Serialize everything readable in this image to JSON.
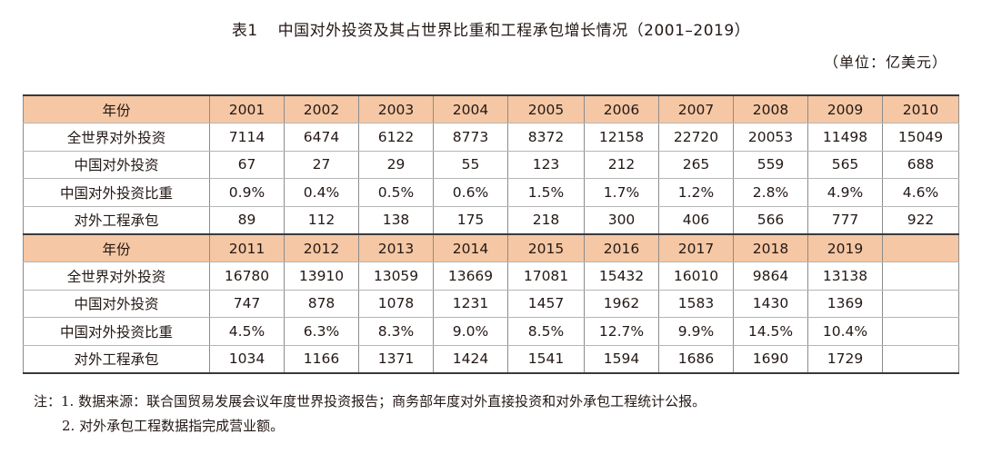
{
  "title": {
    "label": "表1",
    "text": "中国对外投资及其占世界比重和工程承包增长情况（2001–2019）"
  },
  "unit": "（单位：亿美元）",
  "table": {
    "blocks": [
      {
        "header_label": "年份",
        "years": [
          "2001",
          "2002",
          "2003",
          "2004",
          "2005",
          "2006",
          "2007",
          "2008",
          "2009",
          "2010"
        ],
        "rows": [
          {
            "label": "全世界对外投资",
            "values": [
              "7114",
              "6474",
              "6122",
              "8773",
              "8372",
              "12158",
              "22720",
              "20053",
              "11498",
              "15049"
            ]
          },
          {
            "label": "中国对外投资",
            "values": [
              "67",
              "27",
              "29",
              "55",
              "123",
              "212",
              "265",
              "559",
              "565",
              "688"
            ]
          },
          {
            "label": "中国对外投资比重",
            "values": [
              "0.9%",
              "0.4%",
              "0.5%",
              "0.6%",
              "1.5%",
              "1.7%",
              "1.2%",
              "2.8%",
              "4.9%",
              "4.6%"
            ]
          },
          {
            "label": "对外工程承包",
            "values": [
              "89",
              "112",
              "138",
              "175",
              "218",
              "300",
              "406",
              "566",
              "777",
              "922"
            ]
          }
        ]
      },
      {
        "header_label": "年份",
        "years": [
          "2011",
          "2012",
          "2013",
          "2014",
          "2015",
          "2016",
          "2017",
          "2018",
          "2019",
          ""
        ],
        "rows": [
          {
            "label": "全世界对外投资",
            "values": [
              "16780",
              "13910",
              "13059",
              "13669",
              "17081",
              "15432",
              "16010",
              "9864",
              "13138",
              ""
            ]
          },
          {
            "label": "中国对外投资",
            "values": [
              "747",
              "878",
              "1078",
              "1231",
              "1457",
              "1962",
              "1583",
              "1430",
              "1369",
              ""
            ]
          },
          {
            "label": "中国对外投资比重",
            "values": [
              "4.5%",
              "6.3%",
              "8.3%",
              "9.0%",
              "8.5%",
              "12.7%",
              "9.9%",
              "14.5%",
              "10.4%",
              ""
            ]
          },
          {
            "label": "对外工程承包",
            "values": [
              "1034",
              "1166",
              "1371",
              "1424",
              "1541",
              "1594",
              "1686",
              "1690",
              "1729",
              ""
            ]
          }
        ]
      }
    ]
  },
  "notes": {
    "line1": "注：1. 数据来源：联合国贸易发展会议年度世界投资报告；商务部年度对外直接投资和对外承包工程统计公报。",
    "line2": "2. 对外承包工程数据指完成营业额。"
  },
  "colors": {
    "header_bg": "#f5c7a4",
    "text": "#231815"
  }
}
